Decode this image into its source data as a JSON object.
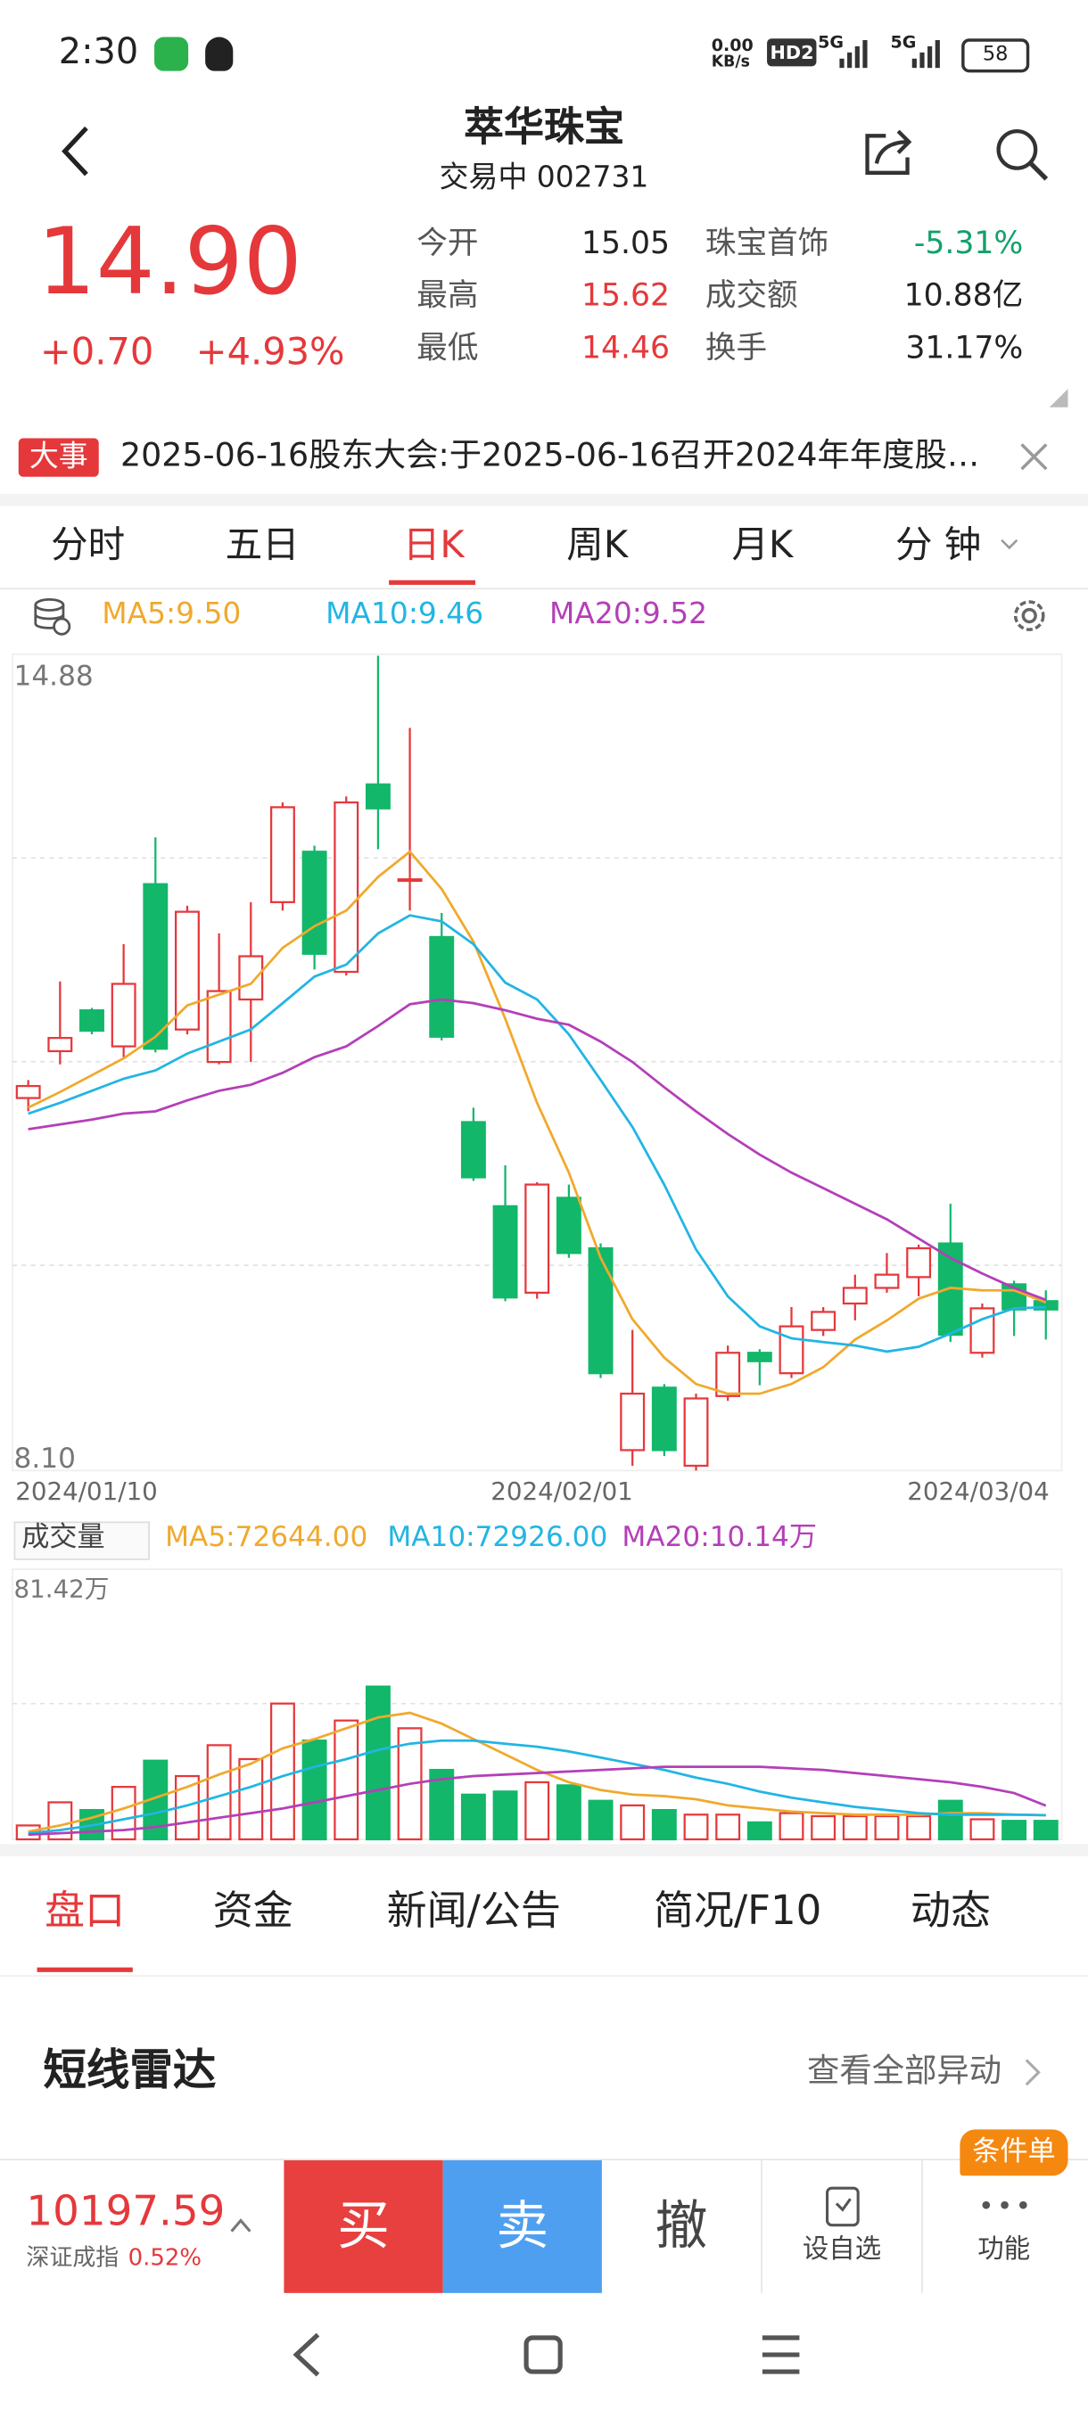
{
  "status": {
    "time": "2:30",
    "speed": "0.00",
    "speed_unit": "KB/s",
    "hd": "HD2",
    "net1": "5G",
    "net2": "5G",
    "battery": "58"
  },
  "header": {
    "title": "萃华珠宝",
    "subtitle": "交易中 002731"
  },
  "quote": {
    "price": "14.90",
    "change": "+0.70",
    "pct": "+4.93%",
    "stats": [
      [
        "今开",
        "15.05",
        "珠宝首饰",
        "-5.31%"
      ],
      [
        "最高",
        "15.62",
        "成交额",
        "10.88亿"
      ],
      [
        "最低",
        "14.46",
        "换手",
        "31.17%"
      ]
    ]
  },
  "news": {
    "badge": "大事",
    "text": "2025-06-16股东大会:于2025-06-16召开2024年年度股…"
  },
  "tabs": [
    "分时",
    "五日",
    "日K",
    "周K",
    "月K",
    "分 钟"
  ],
  "kline": {
    "type": "candlestick",
    "legend": [
      "MA5:9.50",
      "MA10:9.46",
      "MA20:9.52"
    ],
    "ylim": [
      8.1,
      14.88
    ],
    "yticks": [
      14.88,
      {
        "value": 8.1,
        "label": "8.10"
      }
    ],
    "xlabels": [
      "2024/01/10",
      "2024/02/01",
      "2024/03/04"
    ],
    "up_color": "#e5383b",
    "down_color": "#12b76a",
    "open": [
      11.2,
      11.59,
      11.93,
      11.63,
      12.98,
      11.77,
      11.5,
      12.02,
      12.83,
      13.25,
      12.25,
      13.81,
      13.01,
      12.54,
      11.0,
      10.3,
      9.58,
      10.37,
      9.95,
      8.27,
      8.79,
      8.14,
      8.72,
      9.08,
      8.91,
      9.27,
      9.49,
      9.62,
      9.71,
      9.99,
      9.08,
      9.65,
      9.51
    ],
    "high": [
      11.35,
      12.17,
      11.95,
      12.48,
      13.37,
      12.8,
      12.57,
      12.83,
      13.66,
      13.3,
      13.71,
      14.88,
      14.28,
      12.74,
      11.12,
      10.64,
      10.5,
      10.48,
      9.99,
      9.27,
      8.82,
      8.74,
      9.14,
      9.11,
      9.46,
      9.46,
      9.73,
      9.91,
      9.98,
      10.32,
      9.49,
      9.68,
      9.6
    ],
    "low": [
      11.09,
      11.48,
      11.73,
      11.54,
      11.58,
      11.73,
      11.48,
      11.5,
      12.76,
      12.27,
      12.22,
      13.27,
      12.76,
      11.68,
      10.51,
      9.51,
      9.53,
      9.87,
      8.87,
      8.14,
      8.22,
      8.1,
      8.68,
      8.81,
      8.87,
      9.22,
      9.35,
      9.58,
      9.55,
      9.17,
      9.04,
      9.22,
      9.19
    ],
    "close": [
      11.3,
      11.7,
      11.76,
      12.15,
      11.61,
      12.75,
      12.09,
      12.38,
      13.62,
      12.4,
      13.66,
      13.61,
      13.02,
      11.71,
      10.54,
      9.54,
      10.48,
      9.91,
      8.91,
      8.74,
      8.27,
      8.7,
      9.08,
      9.01,
      9.3,
      9.42,
      9.62,
      9.73,
      9.95,
      9.23,
      9.45,
      9.44,
      9.44
    ],
    "series": [
      {
        "name": "MA5",
        "color": "#f0a92d",
        "values": [
          11.12,
          11.25,
          11.39,
          11.53,
          11.71,
          11.97,
          12.06,
          12.15,
          12.45,
          12.63,
          12.76,
          13.04,
          13.25,
          12.94,
          12.5,
          11.86,
          11.16,
          10.58,
          9.87,
          9.36,
          9.04,
          8.82,
          8.74,
          8.74,
          8.82,
          8.96,
          9.19,
          9.35,
          9.53,
          9.62,
          9.6,
          9.6,
          9.5
        ]
      },
      {
        "name": "MA10",
        "color": "#22b5e4",
        "values": [
          11.07,
          11.16,
          11.26,
          11.36,
          11.43,
          11.57,
          11.67,
          11.77,
          11.99,
          12.21,
          12.31,
          12.57,
          12.72,
          12.67,
          12.48,
          12.16,
          12.02,
          11.73,
          11.35,
          10.96,
          10.48,
          9.94,
          9.55,
          9.3,
          9.2,
          9.17,
          9.14,
          9.09,
          9.13,
          9.24,
          9.36,
          9.45,
          9.46
        ]
      },
      {
        "name": "MA20",
        "color": "#b43fb8",
        "values": [
          10.94,
          10.98,
          11.02,
          11.07,
          11.09,
          11.18,
          11.26,
          11.31,
          11.41,
          11.54,
          11.63,
          11.8,
          11.98,
          12.02,
          11.99,
          11.93,
          11.86,
          11.81,
          11.67,
          11.5,
          11.29,
          11.09,
          10.9,
          10.73,
          10.58,
          10.45,
          10.32,
          10.19,
          10.03,
          9.87,
          9.74,
          9.62,
          9.52
        ]
      }
    ]
  },
  "volume": {
    "type": "bar",
    "selector": "成交量",
    "legend": [
      "MA5:72644.00",
      "MA10:72926.00",
      "MA20:10.14万"
    ],
    "ylim": [
      0,
      81.42
    ],
    "yticks": [
      {
        "value": 81.42,
        "label": "81.42万"
      }
    ],
    "values": [
      4.19,
      11.17,
      8.84,
      15.82,
      23.73,
      19.08,
      28.39,
      24.2,
      40.95,
      29.78,
      35.83,
      46.07,
      33.5,
      20.94,
      13.49,
      14.43,
      17.22,
      16.29,
      11.63,
      10.24,
      8.84,
      7.45,
      7.45,
      5.12,
      7.91,
      6.98,
      6.98,
      6.98,
      6.98,
      11.63,
      6.05,
      5.58,
      5.58
    ],
    "series": [
      {
        "name": "MA5",
        "color": "#f0a92d",
        "values": [
          2.33,
          4.19,
          6.51,
          9.31,
          12.56,
          15.82,
          19.54,
          22.8,
          27.45,
          30.25,
          33.5,
          36.76,
          38.16,
          34.9,
          30.25,
          25.59,
          20.94,
          17.22,
          14.89,
          13.49,
          13.03,
          12.1,
          10.24,
          9.31,
          8.38,
          7.91,
          7.45,
          7.45,
          7.45,
          7.91,
          7.91,
          7.45,
          7.26
        ]
      },
      {
        "name": "MA10",
        "color": "#22b5e4",
        "values": [
          1.86,
          2.79,
          4.19,
          6.05,
          7.91,
          10.24,
          13.03,
          15.82,
          19.08,
          21.87,
          24.2,
          26.99,
          28.85,
          29.78,
          29.78,
          28.85,
          27.92,
          26.52,
          24.66,
          22.8,
          20.94,
          18.61,
          16.75,
          14.43,
          12.56,
          11.17,
          9.77,
          8.84,
          7.91,
          7.45,
          7.45,
          7.45,
          7.29
        ]
      },
      {
        "name": "MA20",
        "color": "#b43fb8",
        "values": [
          1.4,
          1.86,
          2.33,
          2.79,
          3.72,
          5.12,
          6.51,
          7.91,
          9.31,
          11.17,
          13.03,
          14.89,
          16.75,
          18.15,
          19.08,
          19.54,
          20.01,
          20.47,
          20.94,
          21.41,
          21.87,
          21.87,
          21.87,
          21.87,
          21.41,
          20.94,
          20.01,
          19.08,
          18.15,
          17.22,
          15.82,
          13.96,
          10.14
        ]
      }
    ]
  },
  "bottom_tabs": [
    "盘口",
    "资金",
    "新闻/公告",
    "简况/F10",
    "动态"
  ],
  "radar": {
    "title": "短线雷达",
    "more": "查看全部异动"
  },
  "bar": {
    "index_value": "10197.59",
    "index_name": "深证成指",
    "index_pct": "0.52%",
    "buy": "买",
    "sell": "卖",
    "cancel": "撤",
    "watch": "设自选",
    "func": "功能",
    "badge": "条件单"
  }
}
